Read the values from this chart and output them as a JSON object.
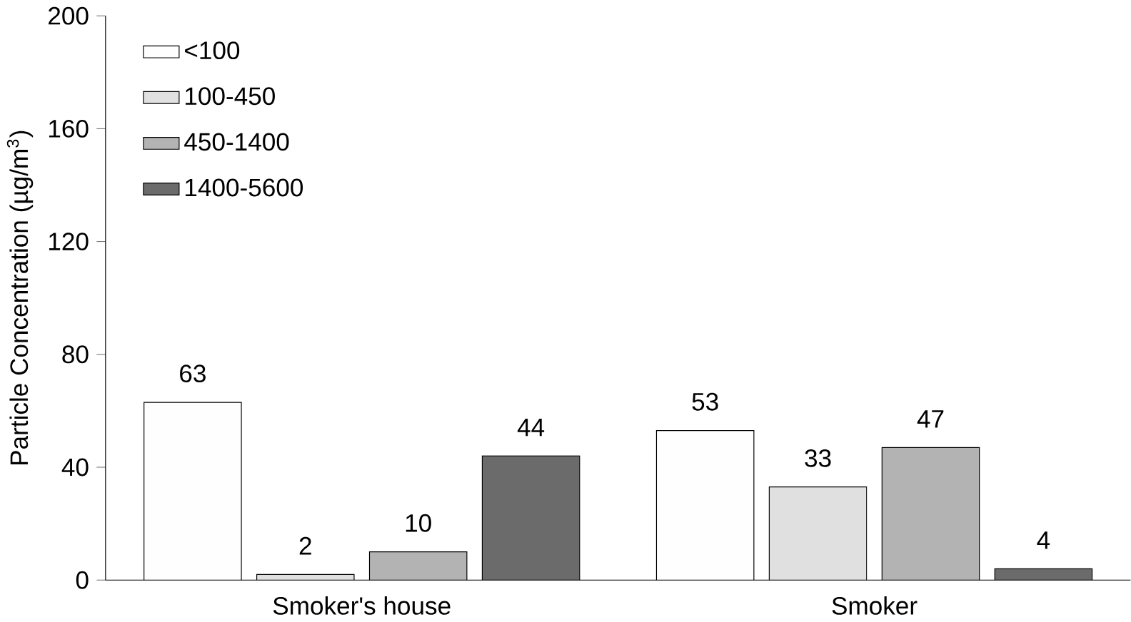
{
  "chart_data": {
    "type": "bar",
    "ylabel": "Particle Concentration (µg/m$^{3}$)",
    "categories": [
      "Smoker's house",
      "Smoker"
    ],
    "series": [
      {
        "name": "<100",
        "color": "#fefefe",
        "values": [
          63,
          53
        ]
      },
      {
        "name": "100-450",
        "color": "#e0e0e0",
        "values": [
          2,
          33
        ]
      },
      {
        "name": "450-1400",
        "color": "#b3b3b3",
        "values": [
          10,
          47
        ]
      },
      {
        "name": "1400-5600",
        "color": "#6b6b6b",
        "values": [
          44,
          4
        ]
      }
    ],
    "ylim": [
      0,
      200
    ],
    "yticks": [
      0,
      40,
      80,
      120,
      160,
      200
    ],
    "data_labels": true,
    "legend": "top left",
    "grid": false
  }
}
